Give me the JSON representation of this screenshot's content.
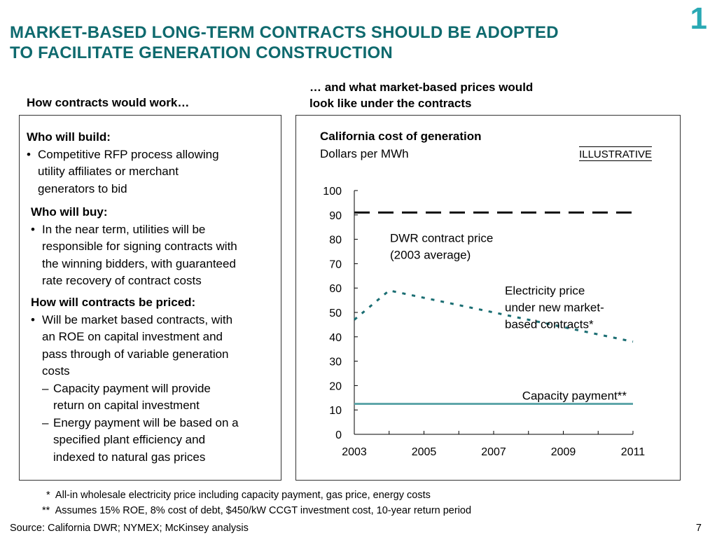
{
  "slide_number": "1",
  "title": {
    "line1": "MARKET-BASED LONG-TERM CONTRACTS SHOULD BE ADOPTED",
    "line2": "TO FACILITATE GENERATION CONSTRUCTION"
  },
  "left_heading": "How contracts would work…",
  "right_heading": {
    "line1": "… and what market-based prices would",
    "line2": "look like under the contracts"
  },
  "left_box": {
    "who_build": {
      "heading": "Who will build:",
      "bullet": "•",
      "text_line1": "Competitive RFP process allowing",
      "text_line2": "utility affiliates or merchant",
      "text_line3": "generators to bid"
    },
    "who_buy": {
      "heading": "Who will buy:",
      "bullet": "•",
      "text_line1": "In the near term, utilities will be",
      "text_line2": "responsible for signing contracts with",
      "text_line3": "the winning bidders, with guaranteed",
      "text_line4": "rate recovery of contract costs"
    },
    "how_priced": {
      "heading": "How will contracts be priced:",
      "bullet": "•",
      "text_line1": "Will be market based contracts, with",
      "text_line2": "an ROE on capital investment and",
      "text_line3": "pass through of variable generation",
      "text_line4": "costs",
      "dash": "–",
      "sub1_line1": "Capacity payment will provide",
      "sub1_line2": "return on capital investment",
      "sub2_line1": "Energy payment will be based on a",
      "sub2_line2": "specified plant efficiency and",
      "sub2_line3": "indexed to natural gas prices"
    }
  },
  "illustrative_label": "ILLUSTRATIVE",
  "chart_data": {
    "type": "line",
    "title": "California cost of generation",
    "ylabel": "Dollars per MWh",
    "xlabel": "",
    "x_ticks": [
      "2003",
      "2005",
      "2007",
      "2009",
      "2011"
    ],
    "y_ticks": [
      "0",
      "10",
      "20",
      "30",
      "40",
      "50",
      "60",
      "70",
      "80",
      "90",
      "100"
    ],
    "xlim": [
      2003,
      2011
    ],
    "ylim": [
      0,
      100
    ],
    "grid": false,
    "series": [
      {
        "name": "DWR contract price (2003 average)",
        "label_line1": "DWR contract price",
        "label_line2": "(2003 average)",
        "style": "long-dash",
        "color": "#111111",
        "x": [
          2003,
          2011
        ],
        "y": [
          91,
          91
        ]
      },
      {
        "name": "Electricity price under new market-based contracts*",
        "label_line1": "Electricity price",
        "label_line2": "under new market-",
        "label_line3": "based contracts*",
        "style": "dotted",
        "color": "#1b6e73",
        "x": [
          2003,
          2004,
          2011
        ],
        "y": [
          47,
          59,
          38
        ]
      },
      {
        "name": "Capacity payment**",
        "label_line1": "Capacity payment**",
        "style": "solid",
        "color": "#5fa6aa",
        "x": [
          2003,
          2011
        ],
        "y": [
          12.5,
          12.5
        ]
      }
    ]
  },
  "footnotes": {
    "note1_marker": "*",
    "note1_text": "All-in wholesale electricity price including capacity payment, gas price, energy costs",
    "note2_marker": "**",
    "note2_text": "Assumes 15% ROE, 8% cost of debt, $450/kW CCGT investment cost, 10-year return period"
  },
  "source": "Source: California DWR; NYMEX; McKinsey analysis",
  "page_number": "7"
}
